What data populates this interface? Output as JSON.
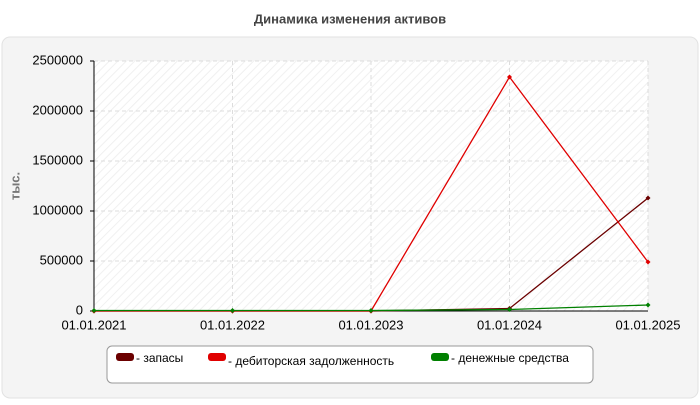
{
  "chart_data": {
    "type": "line",
    "title": "Динамика изменения активов",
    "y_label": "тыс.",
    "categories": [
      "01.01.2021",
      "01.01.2022",
      "01.01.2023",
      "01.01.2024",
      "01.01.2025"
    ],
    "series": [
      {
        "name": "- запасы",
        "color": "#6b0000",
        "values": [
          0,
          0,
          0,
          25000,
          1130000
        ]
      },
      {
        "name": "- дебиторская задолженность",
        "color": "#e00000",
        "values": [
          0,
          0,
          0,
          2340000,
          490000
        ]
      },
      {
        "name": "- денежные средства",
        "color": "#008000",
        "values": [
          5000,
          5000,
          5000,
          15000,
          60000
        ]
      }
    ],
    "ylim": [
      0,
      2500000
    ],
    "yticks": [
      0,
      500000,
      1000000,
      1500000,
      2000000,
      2500000
    ],
    "grid": true
  }
}
